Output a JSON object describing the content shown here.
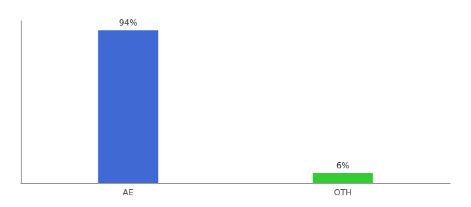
{
  "chart_data": {
    "type": "bar",
    "categories": [
      "AE",
      "OTH"
    ],
    "values": [
      94,
      6
    ],
    "value_labels": [
      "94%",
      "6%"
    ],
    "colors": [
      "#4169d4",
      "#33cc33"
    ],
    "ylim": [
      0,
      100
    ],
    "grid": false,
    "data_labels": true,
    "tick_labels": "x"
  }
}
